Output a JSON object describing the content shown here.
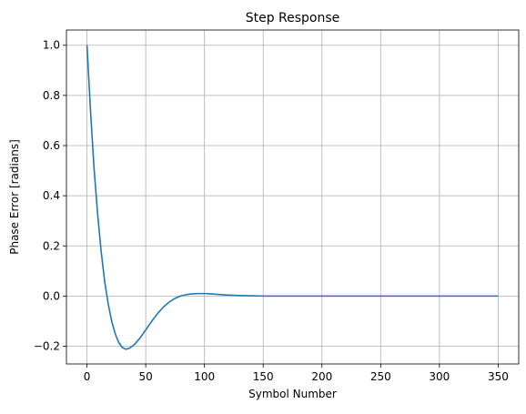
{
  "chart_data": {
    "type": "line",
    "title": "Step Response",
    "xlabel": "Symbol Number",
    "ylabel": "Phase Error [radians]",
    "xlim": [
      -17.5,
      367.5
    ],
    "ylim": [
      -0.2707,
      1.0607
    ],
    "xticks": [
      0,
      50,
      100,
      150,
      200,
      250,
      300,
      350
    ],
    "yticks": [
      -0.2,
      0.0,
      0.2,
      0.4,
      0.6,
      0.8,
      1.0
    ],
    "ytick_labels": [
      "−0.2",
      "0.0",
      "0.2",
      "0.4",
      "0.6",
      "0.8",
      "1.0"
    ],
    "grid": true,
    "series": [
      {
        "color": "#1f77b4",
        "x": [
          0,
          3,
          6,
          9,
          12,
          15,
          18,
          21,
          24,
          27,
          30,
          33,
          36,
          40,
          45,
          50,
          55,
          60,
          65,
          70,
          75,
          80,
          85,
          90,
          95,
          100,
          105,
          110,
          120,
          130,
          140,
          150,
          160,
          180,
          200,
          250,
          300,
          350
        ],
        "y": [
          1.0,
          0.74,
          0.51,
          0.33,
          0.18,
          0.06,
          -0.03,
          -0.1,
          -0.15,
          -0.185,
          -0.205,
          -0.212,
          -0.208,
          -0.195,
          -0.168,
          -0.135,
          -0.101,
          -0.07,
          -0.044,
          -0.024,
          -0.009,
          0.001,
          0.006,
          0.009,
          0.01,
          0.01,
          0.009,
          0.007,
          0.004,
          0.002,
          0.001,
          0.0,
          0.0,
          0.0,
          0.0,
          0.0,
          0.0,
          0.0
        ]
      }
    ]
  }
}
